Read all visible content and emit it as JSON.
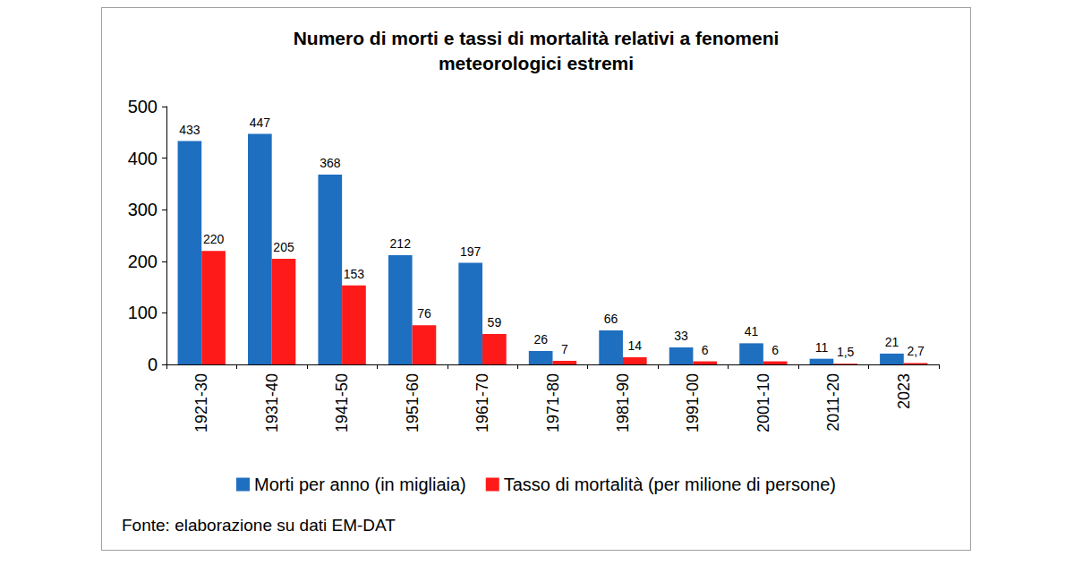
{
  "chart_data": {
    "type": "bar",
    "title": "Numero di morti e tassi di mortalità relativi a fenomeni\nmeteorologici estremi",
    "annotation": "Fonte: elaborazione su dati EM-DAT",
    "categories": [
      "1921-30",
      "1931-40",
      "1941-50",
      "1951-60",
      "1961-70",
      "1971-80",
      "1981-90",
      "1991-00",
      "2001-10",
      "2011-20",
      "2023"
    ],
    "series": [
      {
        "name": "Morti per anno (in migliaia)",
        "color": "#1f6fc0",
        "values": [
          433,
          447,
          368,
          212,
          197,
          26,
          66,
          33,
          41,
          11,
          21
        ]
      },
      {
        "name": "Tasso di mortalità (per milione di persone)",
        "color": "#ff1a1a",
        "values": [
          220,
          205,
          153,
          76,
          59,
          7,
          14,
          6,
          6,
          1.5,
          2.7
        ],
        "value_labels": [
          "220",
          "205",
          "153",
          "76",
          "59",
          "7",
          "14",
          "6",
          "6",
          "1,5",
          "2,7"
        ]
      }
    ],
    "ylim": [
      0,
      500
    ],
    "yticks": [
      0,
      100,
      200,
      300,
      400,
      500
    ],
    "grid": false,
    "legend": "bottom",
    "data_labels": true
  }
}
